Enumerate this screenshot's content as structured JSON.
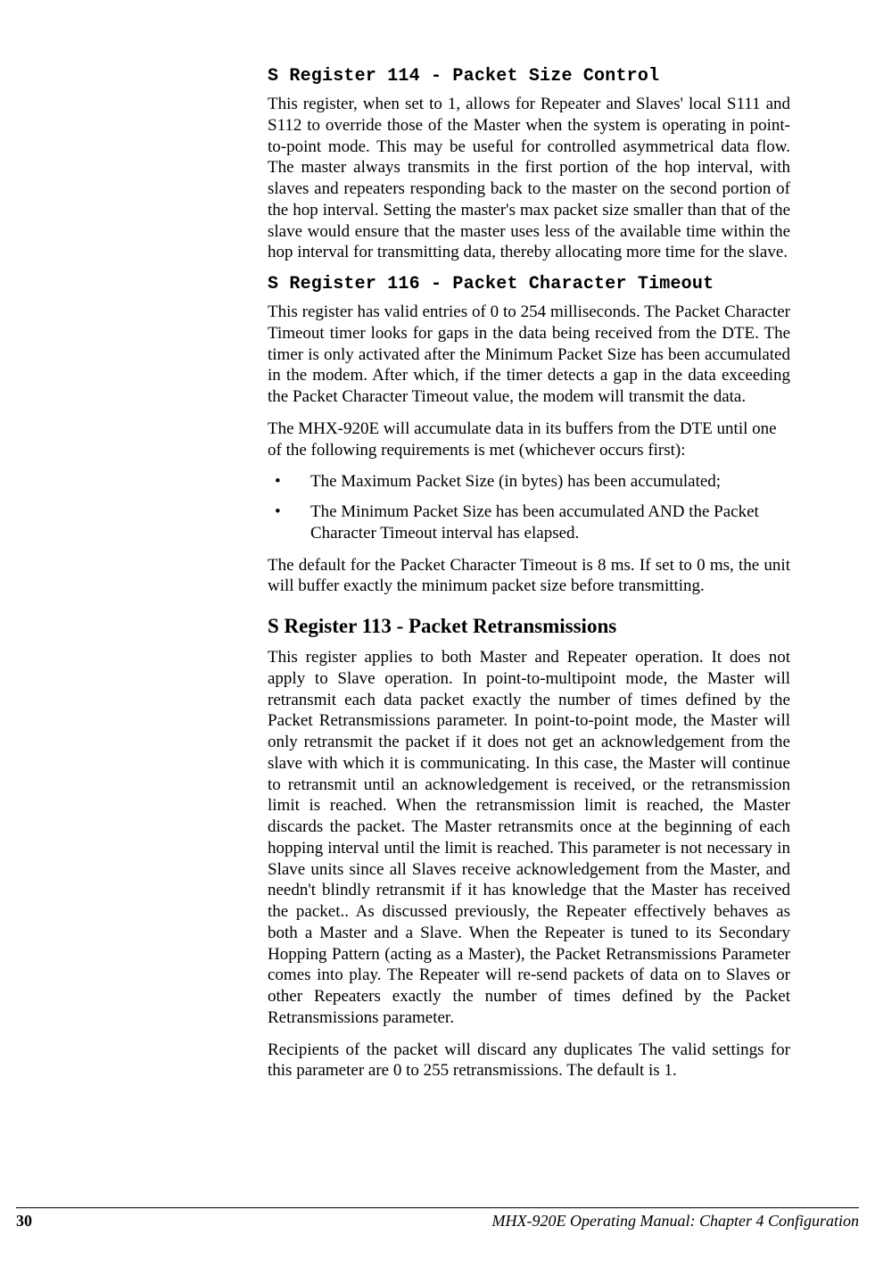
{
  "heading114": "S Register 114 - Packet Size Control",
  "p114": "This register, when set to 1, allows for Repeater and Slaves' local S111 and S112 to override those of the Master when the system is operating in point-to-point mode.  This may be useful for controlled asymmetrical  data flow.  The master always transmits in the first portion of the hop interval, with slaves and repeaters responding back to the master on the second portion of the hop interval.  Setting the master's max packet size smaller than that of the slave would ensure that the master uses less of the available time within the hop interval for transmitting data, thereby allocating more time for the slave.",
  "heading116": "S Register 116 - Packet Character Timeout",
  "p116a": "This register has valid entries of 0 to 254 milliseconds.  The Packet Character Timeout timer looks for gaps in the data being received from the DTE.  The timer is only activated after the Minimum Packet Size has been accumulated in the modem.  After which, if the timer detects a gap in the data exceeding the Packet Character Timeout value, the modem will transmit the data.",
  "p116b": "The MHX-920E will accumulate data in its buffers from the DTE until one of the following requirements is met (whichever occurs first):",
  "bullets": [
    "The Maximum Packet Size (in bytes) has been accumulated;",
    "The Minimum Packet Size has been accumulated AND the Packet Character Timeout interval has elapsed."
  ],
  "p116c": "The default for the Packet Character Timeout is 8 ms.  If set to 0 ms, the unit will buffer exactly the minimum packet size before transmitting.",
  "heading113": "S Register 113  -  Packet Retransmissions",
  "p113a": "This register applies to both Master and Repeater operation.  It does not apply to Slave operation.  In point-to-multipoint mode, the Master will retransmit each data packet exactly the number of times defined by the Packet Retransmissions parameter.  In point-to-point mode, the Master will only retransmit the packet if it does not get an acknowledgement from the slave with which it is communicating.  In this case, the Master will continue to retransmit until an acknowledgement is received, or the retransmission limit is reached.  When the retransmission limit is reached, the Master discards the packet.  The Master retransmits once at the beginning of each hopping interval until the limit is reached.  This parameter is not necessary in Slave units since all Slaves receive acknowledgement from the Master, and needn't blindly retransmit if it has knowledge that the Master has received the packet..  As discussed previously, the Repeater effectively behaves as both a Master and a Slave.  When the Repeater is tuned to its Secondary Hopping Pattern (acting as a Master), the Packet Retransmissions Parameter comes into play.  The Repeater will re-send packets of data on to Slaves or other Repeaters exactly the number of times defined by the Packet Retransmissions parameter.",
  "p113b": "Recipients of the packet will discard any duplicates  The valid settings for this parameter are 0 to 255 retransmissions.  The default is 1.",
  "footer": {
    "page": "30",
    "title": "MHX-920E Operating Manual: Chapter 4 Configuration"
  }
}
